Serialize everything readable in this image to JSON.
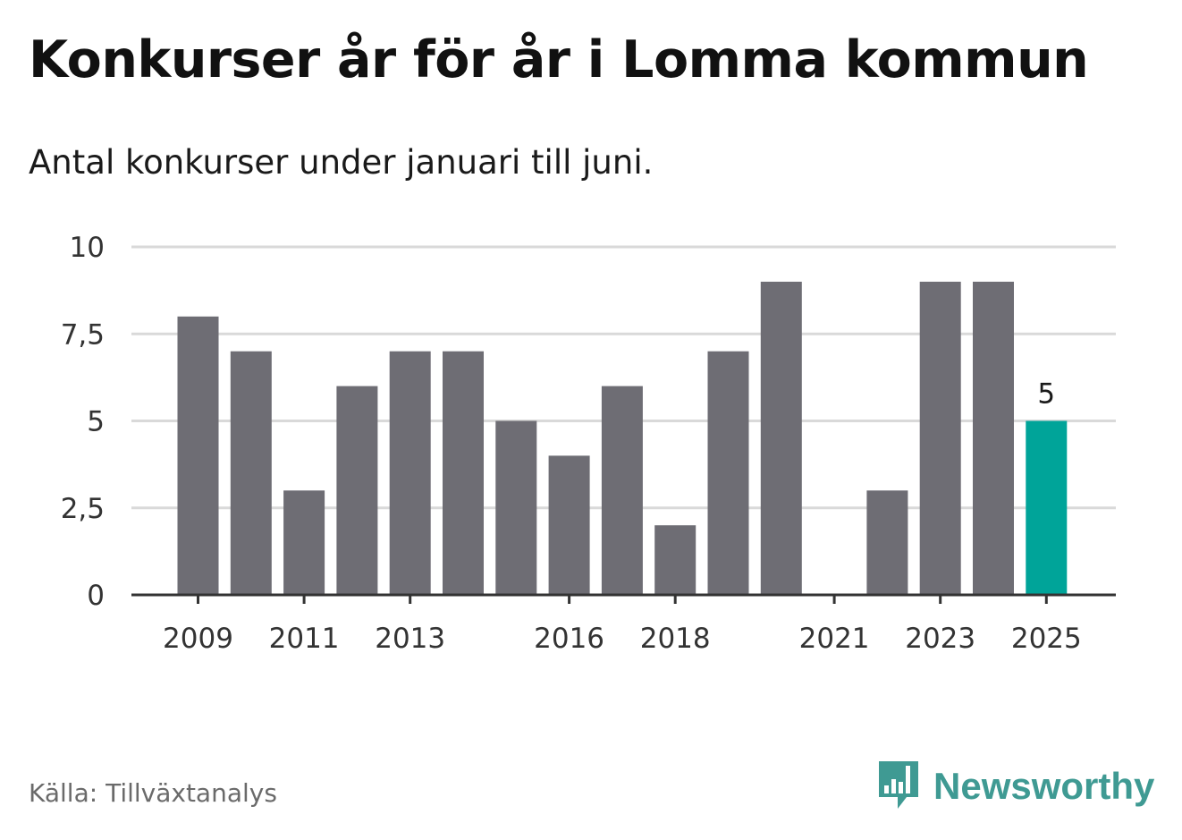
{
  "title": "Konkurser år för år i Lomma kommun",
  "subtitle": "Antal konkurser under januari till juni.",
  "source": "Källa: Tillväxtanalys",
  "brand": {
    "name": "Newsworthy",
    "icon": "newsworthy-logo-icon",
    "color": "#3f9a93"
  },
  "colors": {
    "bar": "#6e6d74",
    "highlight": "#00a499",
    "grid": "#d9d9d9",
    "axis": "#333333"
  },
  "chart_data": {
    "type": "bar",
    "title": "Konkurser år för år i Lomma kommun",
    "subtitle": "Antal konkurser under januari till juni.",
    "categories": [
      "2009",
      "2010",
      "2011",
      "2012",
      "2013",
      "2014",
      "2015",
      "2016",
      "2017",
      "2018",
      "2019",
      "2020",
      "2021",
      "2022",
      "2023",
      "2024",
      "2025"
    ],
    "values": [
      8,
      7,
      3,
      6,
      7,
      7,
      5,
      4,
      6,
      2,
      7,
      9,
      0,
      3,
      9,
      9,
      5
    ],
    "x_tick_labels": [
      "2009",
      "2011",
      "2013",
      "2016",
      "2018",
      "2021",
      "2023",
      "2025"
    ],
    "y_ticks": [
      0,
      2.5,
      5,
      7.5,
      10
    ],
    "y_tick_labels": [
      "0",
      "2,5",
      "5",
      "7,5",
      "10"
    ],
    "ylim": [
      0,
      10
    ],
    "grid": true,
    "highlight_index": 16,
    "data_labels": [
      {
        "category": "2025",
        "text": "5"
      }
    ],
    "xlabel": "",
    "ylabel": ""
  }
}
